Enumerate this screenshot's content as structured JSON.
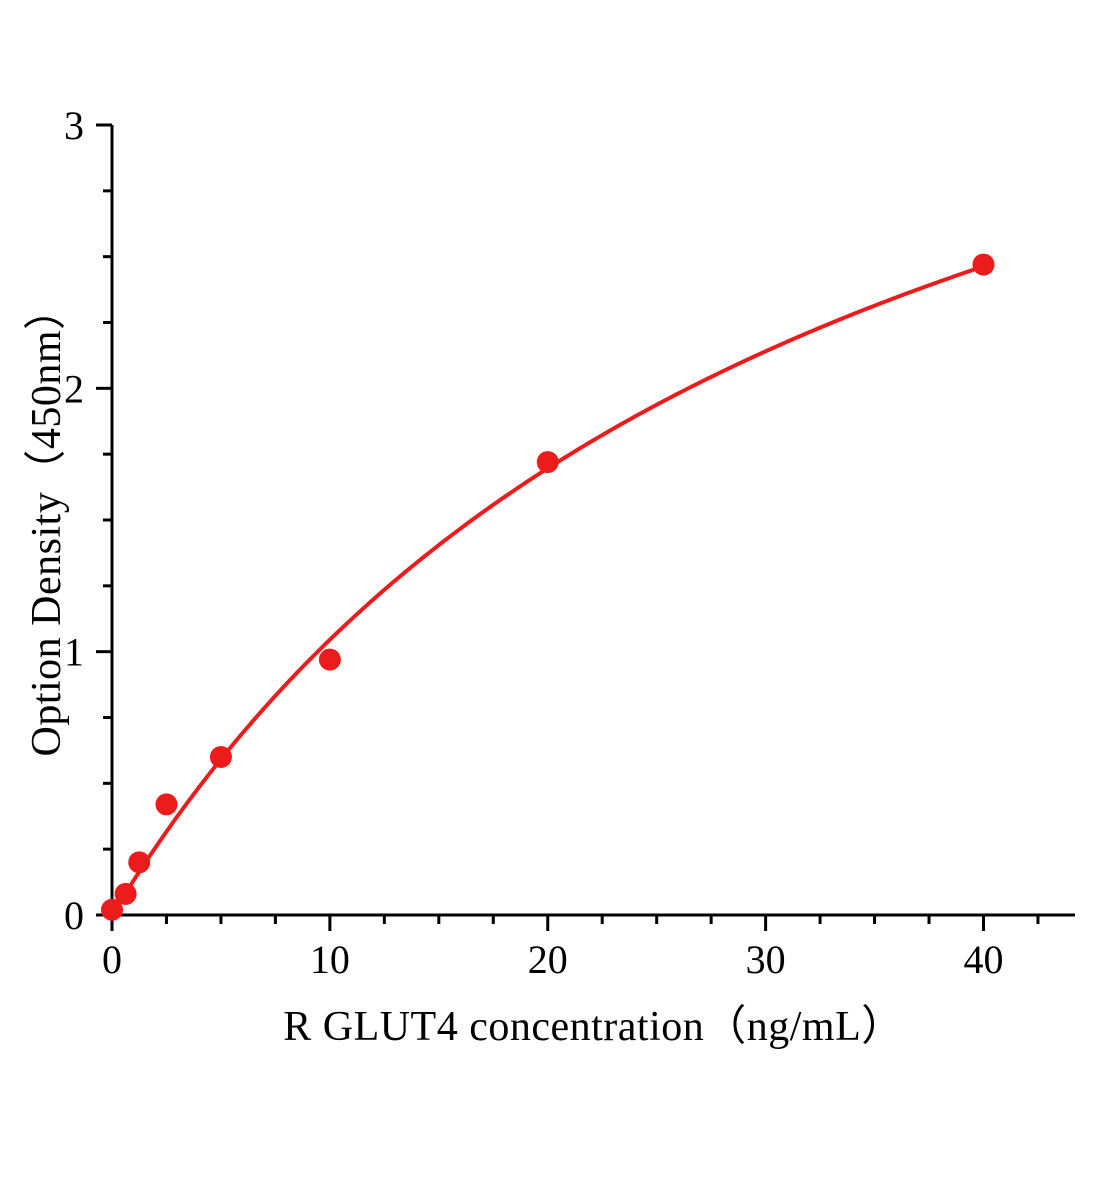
{
  "chart_data": {
    "type": "scatter",
    "title": "",
    "xlabel": "R GLUT4  concentration（ng/mL）",
    "ylabel": "Option Density（450nm）",
    "x": [
      0,
      0.625,
      1.25,
      2.5,
      5,
      10,
      20,
      40
    ],
    "y": [
      0.02,
      0.08,
      0.2,
      0.42,
      0.6,
      0.97,
      1.72,
      2.47
    ],
    "x_ticks": [
      0,
      10,
      20,
      30,
      40
    ],
    "y_ticks": [
      0,
      1,
      2,
      3
    ],
    "xlim": [
      0,
      44.2
    ],
    "ylim": [
      0,
      3
    ],
    "x_minor_step": 2.5,
    "y_minor_step": 0.25,
    "grid": false,
    "legend": "none",
    "curve": "saturation-fit",
    "series_color": "#ed1c1c",
    "axis_color": "#000000"
  }
}
